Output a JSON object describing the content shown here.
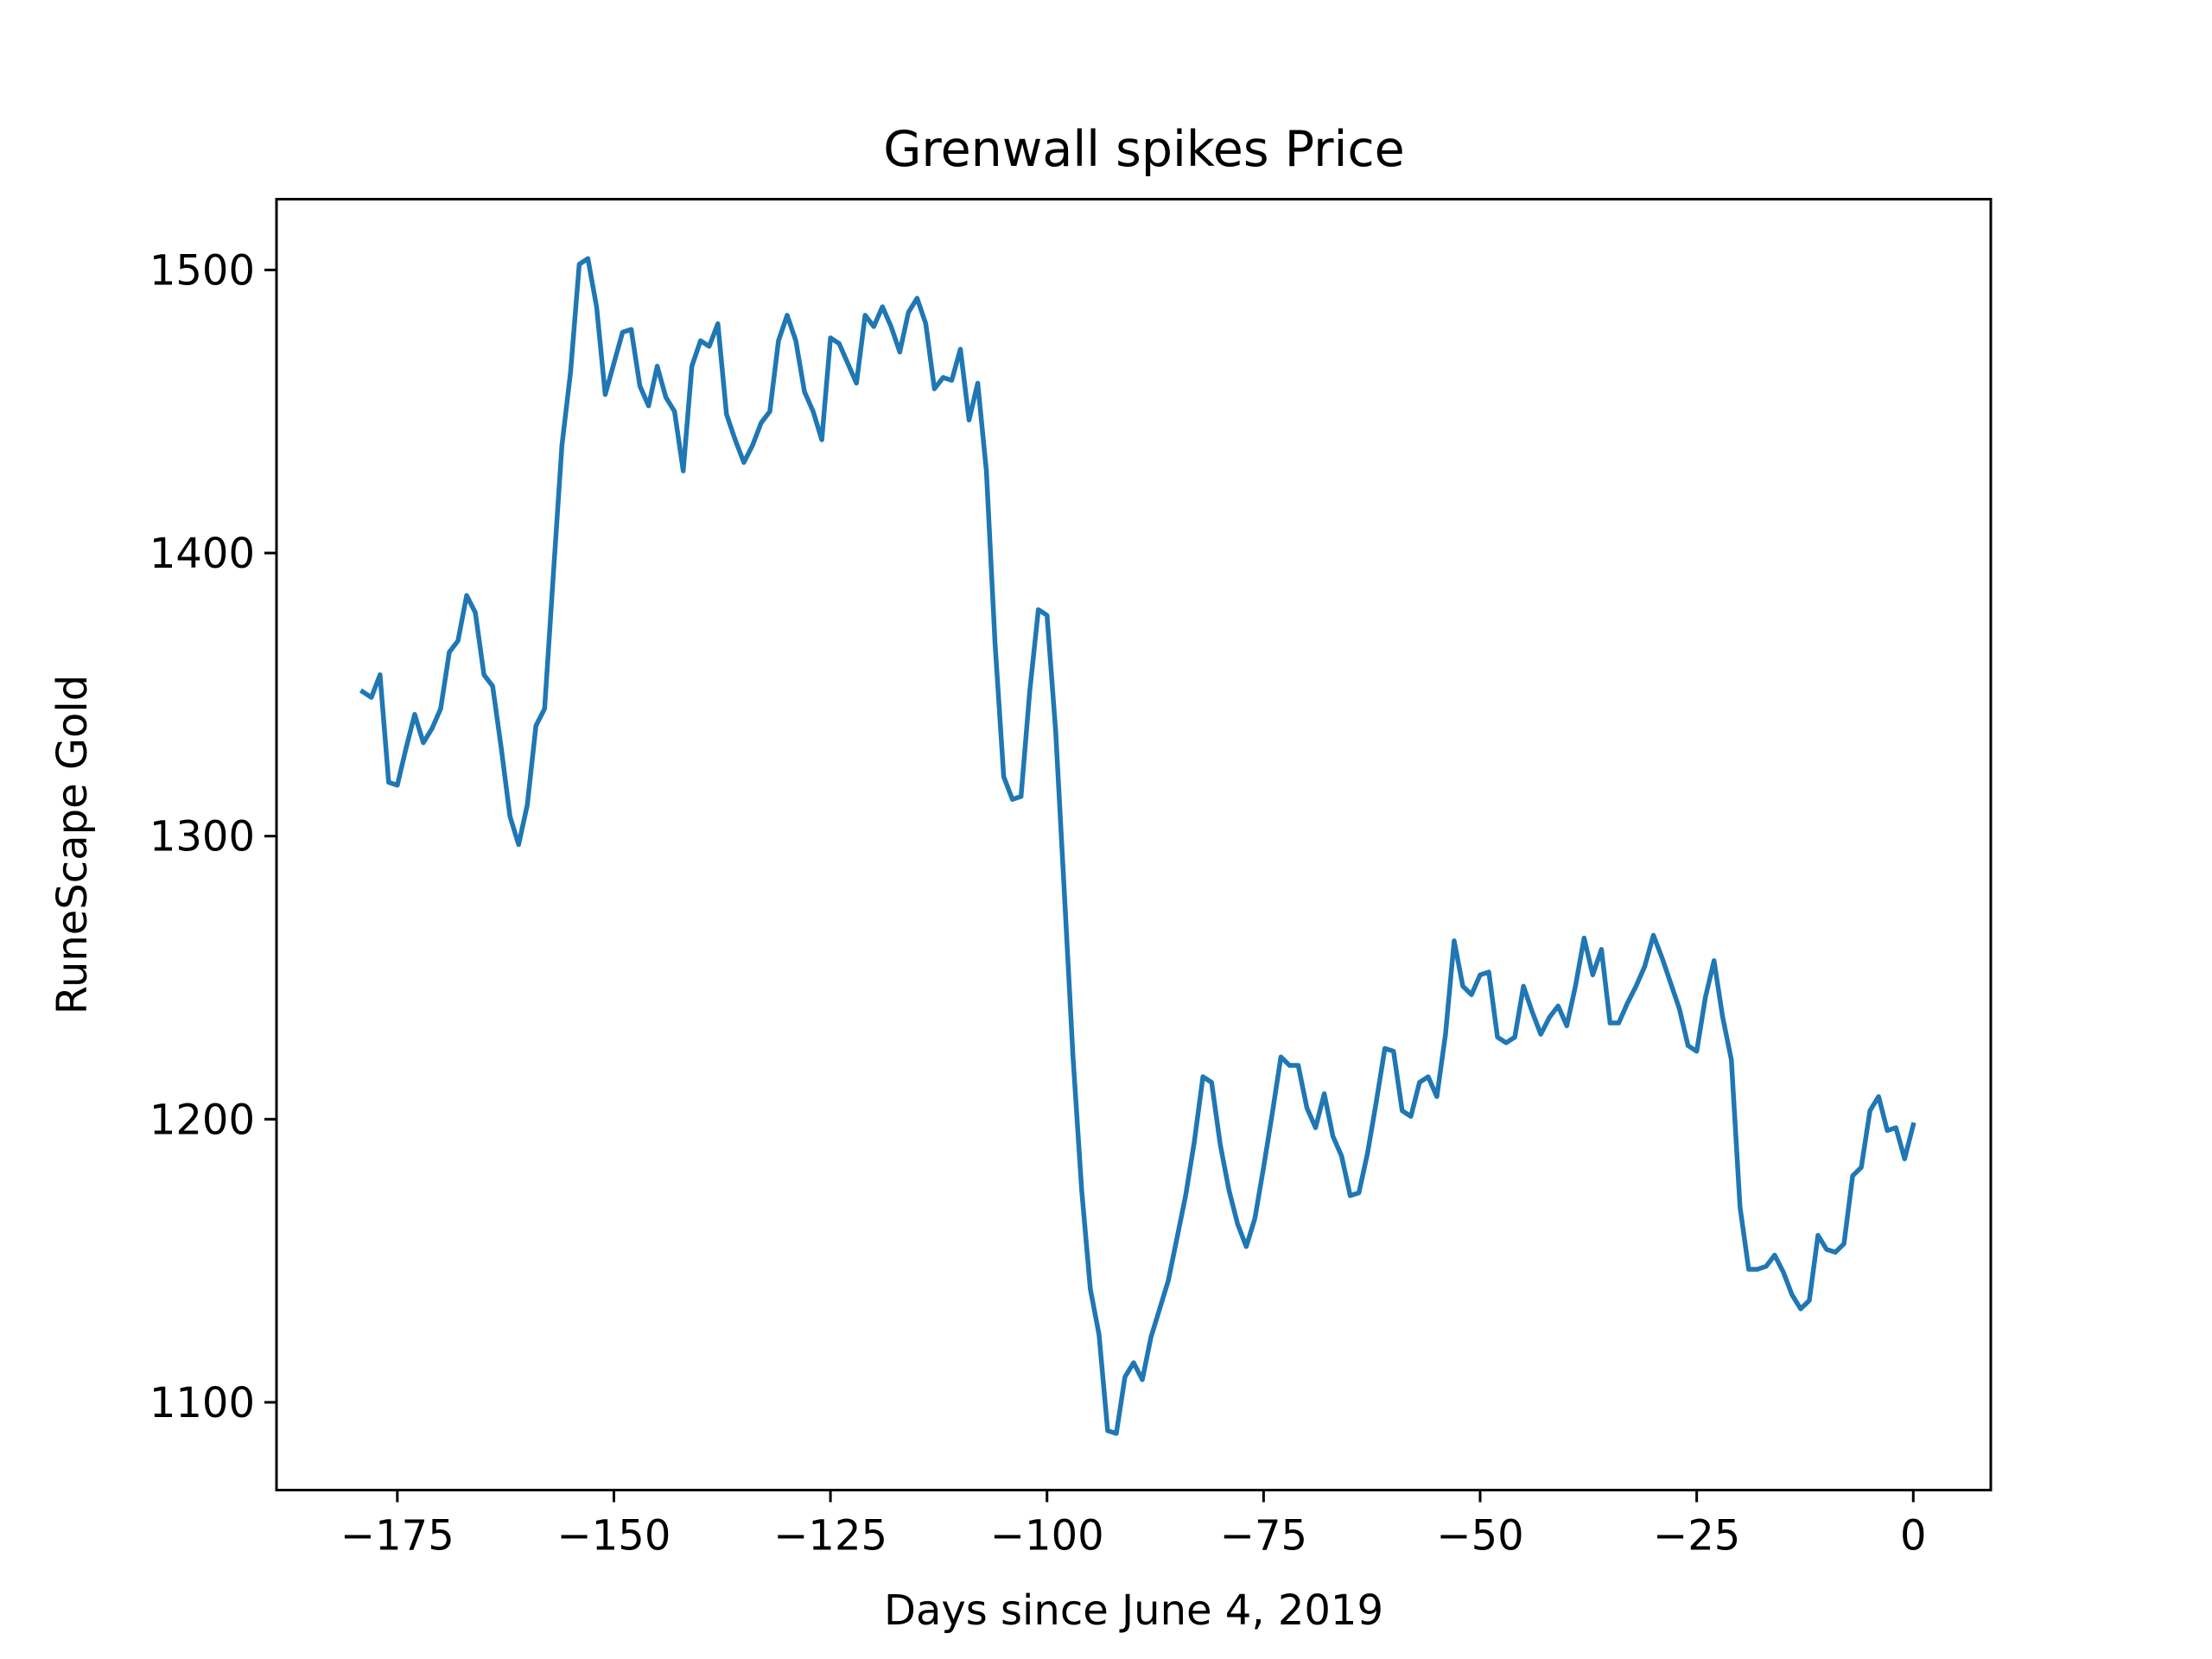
{
  "chart_data": {
    "type": "line",
    "title": "Grenwall spikes Price",
    "xlabel": "Days since June 4, 2019",
    "ylabel": "RuneScape Gold",
    "xlim": [
      -188.95,
      8.95
    ],
    "ylim": [
      1069,
      1525
    ],
    "xticks": [
      -175,
      -150,
      -125,
      -100,
      -75,
      -50,
      -25,
      0
    ],
    "yticks": [
      1100,
      1200,
      1300,
      1400,
      1500
    ],
    "grid": false,
    "legend": null,
    "colors": {
      "line": "#1f77b4",
      "axes": "#000000",
      "background": "#ffffff"
    },
    "series": [
      {
        "x": [
          -179,
          -178,
          -177,
          -176,
          -175,
          -174,
          -173,
          -172,
          -171,
          -170,
          -169,
          -168,
          -167,
          -166,
          -165,
          -164,
          -163,
          -162,
          -161,
          -160,
          -159,
          -158,
          -157,
          -156,
          -155,
          -154,
          -153,
          -152,
          -151,
          -150,
          -149,
          -148,
          -147,
          -146,
          -145,
          -144,
          -143,
          -142,
          -141,
          -140,
          -139,
          -138,
          -137,
          -136,
          -135,
          -134,
          -133,
          -132,
          -131,
          -130,
          -129,
          -128,
          -127,
          -126,
          -125,
          -124,
          -123,
          -122,
          -121,
          -120,
          -119,
          -118,
          -117,
          -116,
          -115,
          -114,
          -113,
          -112,
          -111,
          -110,
          -109,
          -108,
          -107,
          -106,
          -105,
          -104,
          -103,
          -102,
          -101,
          -100,
          -99,
          -98,
          -97,
          -96,
          -95,
          -94,
          -93,
          -92,
          -91,
          -90,
          -89,
          -88,
          -87,
          -86,
          -85,
          -84,
          -83,
          -82,
          -81,
          -80,
          -79,
          -78,
          -77,
          -76,
          -75,
          -74,
          -73,
          -72,
          -71,
          -70,
          -69,
          -68,
          -67,
          -66,
          -65,
          -64,
          -63,
          -62,
          -61,
          -60,
          -59,
          -58,
          -57,
          -56,
          -55,
          -54,
          -53,
          -52,
          -51,
          -50,
          -49,
          -48,
          -47,
          -46,
          -45,
          -44,
          -43,
          -42,
          -41,
          -40,
          -39,
          -38,
          -37,
          -36,
          -35,
          -34,
          -33,
          -32,
          -31,
          -30,
          -29,
          -28,
          -27,
          -26,
          -25,
          -24,
          -23,
          -22,
          -21,
          -20,
          -19,
          -18,
          -17,
          -16,
          -15,
          -14,
          -13,
          -12,
          -11,
          -10,
          -9,
          -8,
          -7,
          -6,
          -5,
          -4,
          -3,
          -2,
          -1,
          0
        ],
        "y": [
          1351,
          1349,
          1357,
          1319,
          1318,
          1331,
          1343,
          1333,
          1338,
          1345,
          1365,
          1369,
          1385,
          1379,
          1357,
          1353,
          1331,
          1307,
          1297,
          1311,
          1339,
          1345,
          1392,
          1438,
          1464,
          1502,
          1504,
          1487,
          1456,
          1467,
          1478,
          1479,
          1459,
          1452,
          1466,
          1455,
          1450,
          1429,
          1466,
          1475,
          1473,
          1481,
          1449,
          1440,
          1432,
          1438,
          1446,
          1450,
          1475,
          1484,
          1475,
          1457,
          1450,
          1440,
          1476,
          1474,
          1467,
          1460,
          1484,
          1480,
          1487,
          1480,
          1471,
          1485,
          1490,
          1481,
          1458,
          1462,
          1461,
          1472,
          1447,
          1460,
          1429,
          1368,
          1321,
          1313,
          1314,
          1351,
          1380,
          1378,
          1337,
          1280,
          1222,
          1175,
          1140,
          1124,
          1090,
          1089,
          1109,
          1114,
          1108,
          1123,
          1133,
          1143,
          1158,
          1173,
          1192,
          1215,
          1213,
          1191,
          1175,
          1163,
          1155,
          1165,
          1183,
          1202,
          1222,
          1219,
          1219,
          1204,
          1197,
          1209,
          1194,
          1187,
          1173,
          1174,
          1188,
          1206,
          1225,
          1224,
          1203,
          1201,
          1213,
          1215,
          1208,
          1230,
          1263,
          1247,
          1244,
          1251,
          1252,
          1229,
          1227,
          1229,
          1247,
          1238,
          1230,
          1236,
          1240,
          1233,
          1247,
          1264,
          1251,
          1260,
          1234,
          1234,
          1241,
          1247,
          1254,
          1265,
          1257,
          1248,
          1239,
          1226,
          1224,
          1243,
          1256,
          1236,
          1221,
          1169,
          1147,
          1147,
          1148,
          1152,
          1146,
          1138,
          1133,
          1136,
          1159,
          1154,
          1153,
          1156,
          1180,
          1183,
          1203,
          1208,
          1196,
          1197,
          1186,
          1198
        ]
      }
    ]
  }
}
